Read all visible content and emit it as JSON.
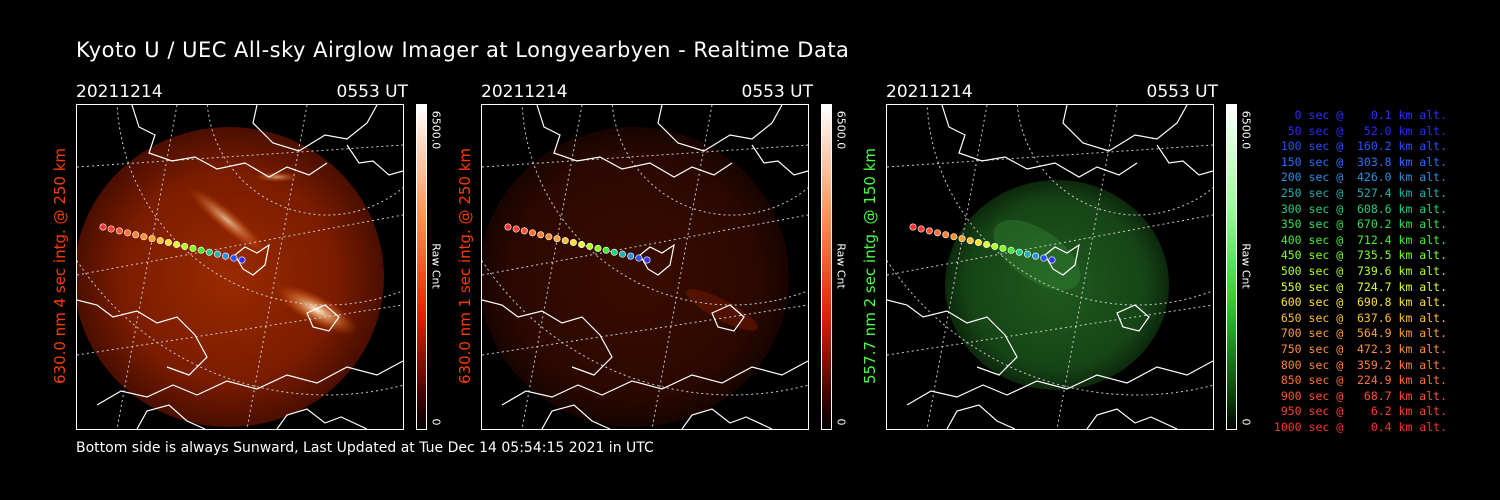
{
  "title": "Kyoto U / UEC All-sky Airglow Imager at Longyearbyen - Realtime Data",
  "footer": "Bottom side is always Sunward, Last Updated at Tue Dec 14 05:54:15 2021 in UTC",
  "panels": [
    {
      "date": "20211214",
      "time": "0553 UT",
      "ylabel": "630.0 nm  4 sec intg. @ 250 km",
      "cb_max": "6500.0",
      "cb_unit": "Raw Cnt",
      "cb_min": "0",
      "color": "#ff3a00",
      "glow": "red-bright"
    },
    {
      "date": "20211214",
      "time": "0553 UT",
      "ylabel": "630.0 nm  1 sec intg. @ 250 km",
      "cb_max": "6500.0",
      "cb_unit": "Raw Cnt",
      "cb_min": "0",
      "color": "#ff3a00",
      "glow": "red-faint"
    },
    {
      "date": "20211214",
      "time": "0553 UT",
      "ylabel": "557.7 nm  2 sec intg. @ 150 km",
      "cb_max": "6500.0",
      "cb_unit": "Raw Cnt",
      "cb_min": "0",
      "color": "#46ff46",
      "glow": "green"
    }
  ],
  "legend": [
    {
      "text": "   0 sec @    0.1 km alt.",
      "color": "#3030ff"
    },
    {
      "text": "  50 sec @   52.0 km alt.",
      "color": "#2a2aff"
    },
    {
      "text": " 100 sec @  160.2 km alt.",
      "color": "#2a50ff"
    },
    {
      "text": " 150 sec @  303.8 km alt.",
      "color": "#2a70ff"
    },
    {
      "text": " 200 sec @  426.0 km alt.",
      "color": "#2a90e0"
    },
    {
      "text": " 250 sec @  527.4 km alt.",
      "color": "#20b0b0"
    },
    {
      "text": " 300 sec @  608.6 km alt.",
      "color": "#20d080"
    },
    {
      "text": " 350 sec @  670.2 km alt.",
      "color": "#30e050"
    },
    {
      "text": " 400 sec @  712.4 km alt.",
      "color": "#40f030"
    },
    {
      "text": " 450 sec @  735.5 km alt.",
      "color": "#80ff20"
    },
    {
      "text": " 500 sec @  739.6 km alt.",
      "color": "#b0ff20"
    },
    {
      "text": " 550 sec @  724.7 km alt.",
      "color": "#e0ff30"
    },
    {
      "text": " 600 sec @  690.8 km alt.",
      "color": "#ffe030"
    },
    {
      "text": " 650 sec @  637.6 km alt.",
      "color": "#ffc030"
    },
    {
      "text": " 700 sec @  564.9 km alt.",
      "color": "#ffa030"
    },
    {
      "text": " 750 sec @  472.3 km alt.",
      "color": "#ff9030"
    },
    {
      "text": " 800 sec @  359.2 km alt.",
      "color": "#ff8030"
    },
    {
      "text": " 850 sec @  224.9 km alt.",
      "color": "#ff7030"
    },
    {
      "text": " 900 sec @   68.7 km alt.",
      "color": "#ff5030"
    },
    {
      "text": " 950 sec @    6.2 km alt.",
      "color": "#ff4030"
    },
    {
      "text": "1000 sec @    0.4 km alt.",
      "color": "#ff3030"
    }
  ]
}
